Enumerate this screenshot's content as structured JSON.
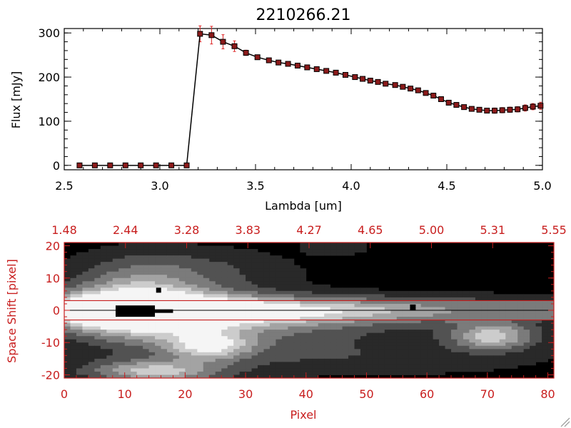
{
  "chart_data": [
    {
      "type": "line",
      "title": "2210266.21",
      "xlabel": "Lambda [um]",
      "ylabel": "Flux [mJy]",
      "xlim": [
        2.5,
        5.0
      ],
      "ylim": [
        -10,
        310
      ],
      "xticks": [
        "2.5",
        "3.0",
        "3.5",
        "4.0",
        "4.5",
        "5.0"
      ],
      "xtick_values": [
        2.5,
        3.0,
        3.5,
        4.0,
        4.5,
        5.0
      ],
      "yticks": [
        "0",
        "100",
        "200",
        "300"
      ],
      "ytick_values": [
        0,
        100,
        200,
        300
      ],
      "line_color": "#000000",
      "marker_color": "#8b1a1a",
      "errorbar_color": "#dd2222",
      "grid": false,
      "series": [
        {
          "x": [
            2.58,
            2.66,
            2.74,
            2.82,
            2.9,
            2.98,
            3.06,
            3.14,
            3.21,
            3.27,
            3.33,
            3.39,
            3.45,
            3.51,
            3.57,
            3.62,
            3.67,
            3.72,
            3.77,
            3.82,
            3.87,
            3.92,
            3.97,
            4.02,
            4.06,
            4.1,
            4.14,
            4.18,
            4.23,
            4.27,
            4.31,
            4.35,
            4.39,
            4.43,
            4.47,
            4.51,
            4.55,
            4.59,
            4.63,
            4.67,
            4.71,
            4.75,
            4.79,
            4.83,
            4.87,
            4.91,
            4.95,
            4.99
          ],
          "y": [
            0,
            0,
            0,
            0,
            0,
            0,
            0,
            0,
            298,
            295,
            280,
            270,
            255,
            245,
            238,
            233,
            230,
            226,
            222,
            218,
            214,
            210,
            205,
            200,
            196,
            192,
            189,
            185,
            182,
            178,
            174,
            170,
            164,
            158,
            150,
            142,
            137,
            132,
            128,
            126,
            124,
            124,
            125,
            126,
            127,
            130,
            133,
            135
          ],
          "err": [
            0,
            0,
            0,
            0,
            0,
            0,
            0,
            0,
            18,
            20,
            16,
            12,
            6,
            5,
            4,
            4,
            4,
            4,
            4,
            4,
            4,
            4,
            4,
            4,
            4,
            4,
            4,
            4,
            4,
            4,
            4,
            4,
            4,
            4,
            4,
            4,
            4,
            4,
            4,
            5,
            5,
            6,
            6,
            6,
            6,
            7,
            7,
            8
          ]
        }
      ]
    },
    {
      "type": "heatmap",
      "xlabel": "Pixel",
      "ylabel": "Space Shift [pixel]",
      "xlim": [
        0,
        81
      ],
      "ylim": [
        -21,
        21
      ],
      "xticks": [
        "0",
        "10",
        "20",
        "30",
        "40",
        "50",
        "60",
        "70",
        "80"
      ],
      "xtick_values": [
        0,
        10,
        20,
        30,
        40,
        50,
        60,
        70,
        80
      ],
      "yticks": [
        "20",
        "10",
        "0",
        "-10",
        "-20"
      ],
      "ytick_values": [
        20,
        10,
        0,
        -10,
        -20
      ],
      "top_ticks": [
        "1.48",
        "2.44",
        "3.28",
        "3.83",
        "4.27",
        "4.65",
        "5.00",
        "5.31",
        "5.55"
      ],
      "aperture": [
        -3,
        3
      ],
      "trace_line": 0,
      "axis_color": "#c81e1e",
      "colormap": "grayscale"
    }
  ]
}
